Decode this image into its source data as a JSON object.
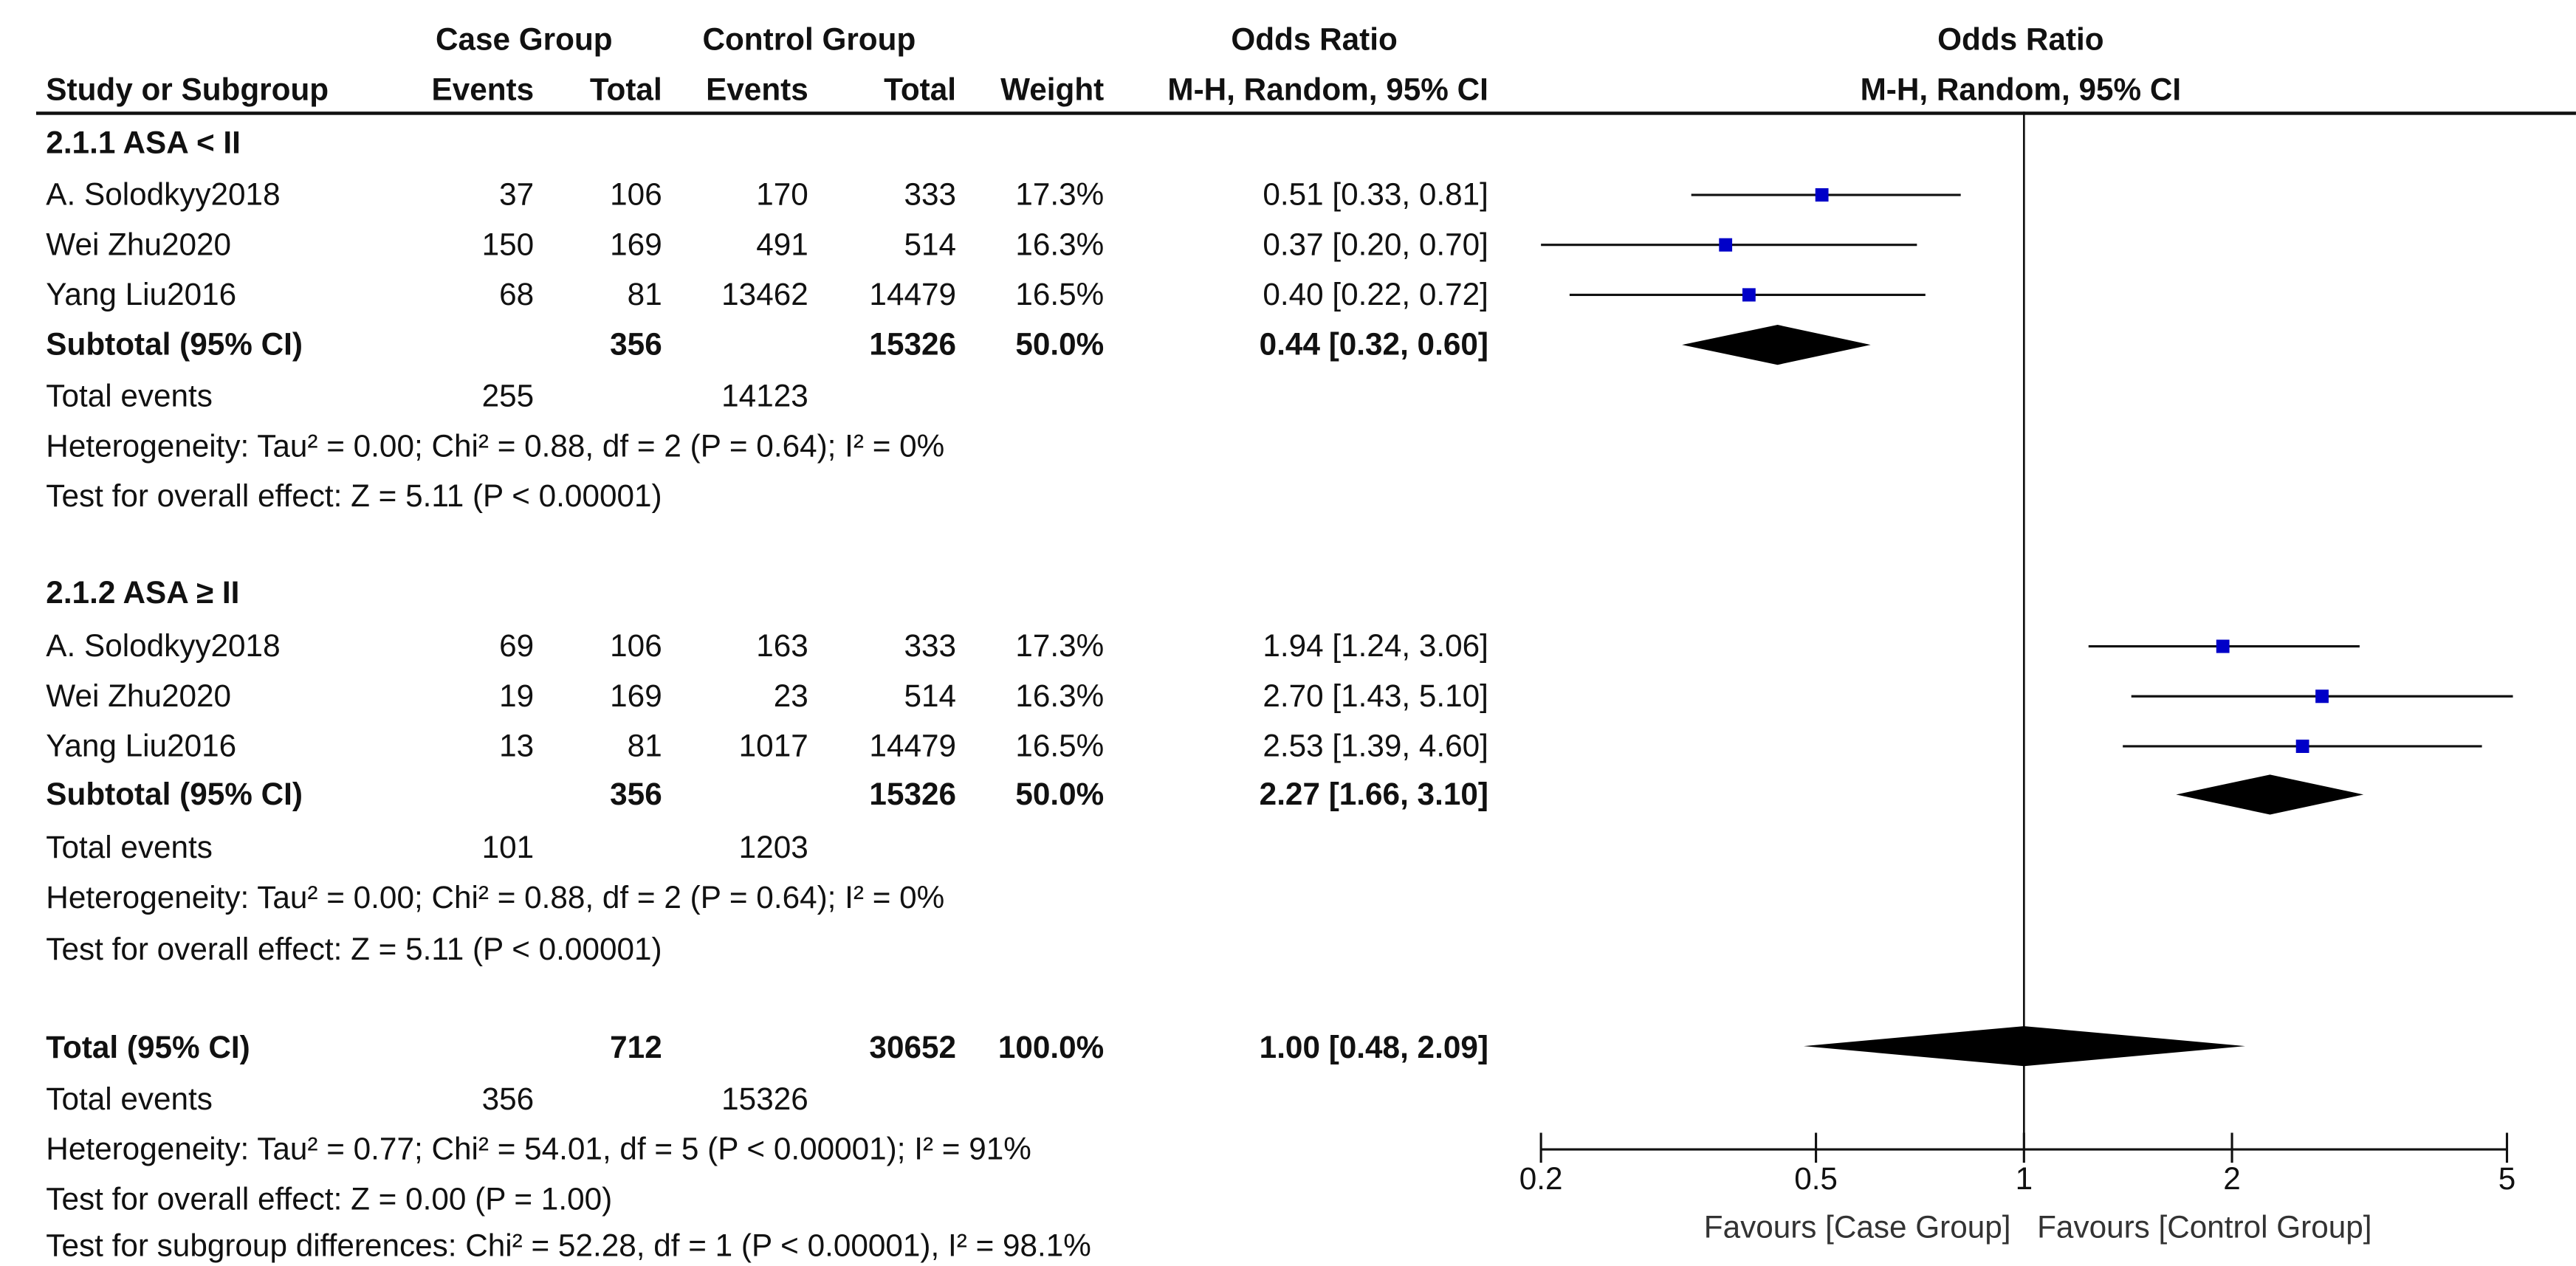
{
  "header": {
    "case_group": "Case Group",
    "control_group": "Control Group",
    "odds_ratio_left": "Odds Ratio",
    "study_or_subgroup": "Study or Subgroup",
    "events_case": "Events",
    "total_case": "Total",
    "events_control": "Events",
    "total_control": "Total",
    "weight": "Weight",
    "method_left": "M-H, Random, 95% CI",
    "odds_ratio_right": "Odds Ratio",
    "method_right": "M-H, Random, 95% CI"
  },
  "subgroups": [
    {
      "title": "2.1.1 ASA < II",
      "studies": [
        {
          "name": "A. Solodkyy2018",
          "case_events": "37",
          "case_total": "106",
          "control_events": "170",
          "control_total": "333",
          "weight": "17.3%",
          "ci_text": "0.51 [0.33, 0.81]"
        },
        {
          "name": "Wei Zhu2020",
          "case_events": "150",
          "case_total": "169",
          "control_events": "491",
          "control_total": "514",
          "weight": "16.3%",
          "ci_text": "0.37 [0.20, 0.70]"
        },
        {
          "name": "Yang Liu2016",
          "case_events": "68",
          "case_total": "81",
          "control_events": "13462",
          "control_total": "14479",
          "weight": "16.5%",
          "ci_text": "0.40 [0.22, 0.72]"
        }
      ],
      "subtotal": {
        "label": "Subtotal (95% CI)",
        "case_total": "356",
        "control_total": "15326",
        "weight": "50.0%",
        "ci_text": "0.44 [0.32, 0.60]"
      },
      "total_events": {
        "label": "Total events",
        "case": "255",
        "control": "14123"
      },
      "heterogeneity": "Heterogeneity: Tau² = 0.00; Chi² = 0.88, df = 2 (P = 0.64); I² = 0%",
      "overall_effect": "Test for overall effect: Z = 5.11 (P < 0.00001)"
    },
    {
      "title": "2.1.2 ASA ≥ II",
      "studies": [
        {
          "name": "A. Solodkyy2018",
          "case_events": "69",
          "case_total": "106",
          "control_events": "163",
          "control_total": "333",
          "weight": "17.3%",
          "ci_text": "1.94 [1.24, 3.06]"
        },
        {
          "name": "Wei Zhu2020",
          "case_events": "19",
          "case_total": "169",
          "control_events": "23",
          "control_total": "514",
          "weight": "16.3%",
          "ci_text": "2.70 [1.43, 5.10]"
        },
        {
          "name": "Yang Liu2016",
          "case_events": "13",
          "case_total": "81",
          "control_events": "1017",
          "control_total": "14479",
          "weight": "16.5%",
          "ci_text": "2.53 [1.39, 4.60]"
        }
      ],
      "subtotal": {
        "label": "Subtotal (95% CI)",
        "case_total": "356",
        "control_total": "15326",
        "weight": "50.0%",
        "ci_text": "2.27 [1.66, 3.10]"
      },
      "total_events": {
        "label": "Total events",
        "case": "101",
        "control": "1203"
      },
      "heterogeneity": "Heterogeneity: Tau² = 0.00; Chi² = 0.88, df = 2 (P = 0.64); I² = 0%",
      "overall_effect": "Test for overall effect: Z = 5.11 (P < 0.00001)"
    }
  ],
  "overall": {
    "label": "Total (95% CI)",
    "case_total": "712",
    "control_total": "30652",
    "weight": "100.0%",
    "ci_text": "1.00 [0.48, 2.09]",
    "total_events": {
      "label": "Total events",
      "case": "356",
      "control": "15326"
    },
    "heterogeneity": "Heterogeneity: Tau² = 0.77; Chi² = 54.01, df = 5 (P < 0.00001); I² = 91%",
    "overall_effect": "Test for overall effect: Z = 0.00 (P = 1.00)",
    "subgroup_differences": "Test for subgroup differences: Chi² = 52.28, df = 1 (P < 0.00001), I² = 98.1%"
  },
  "axis": {
    "favours_left": "Favours [Case Group]",
    "favours_right": "Favours [Control Group]"
  },
  "colors": {
    "study_marker": "#0000c8",
    "diamond": "#000000",
    "line": "#111111"
  },
  "chart_data": {
    "type": "forest",
    "scale": "log",
    "xlim": [
      0.2,
      5
    ],
    "ticks": [
      0.2,
      0.5,
      1,
      2,
      5
    ],
    "tick_labels": [
      "0.2",
      "0.5",
      "1",
      "2",
      "5"
    ],
    "null_line": 1,
    "xlabel_left": "Favours [Case Group]",
    "xlabel_right": "Favours [Control Group]",
    "studies": [
      {
        "subgroup": "2.1.1 ASA < II",
        "name": "A. Solodkyy2018",
        "or": 0.51,
        "lo": 0.33,
        "hi": 0.81,
        "weight": 17.3
      },
      {
        "subgroup": "2.1.1 ASA < II",
        "name": "Wei Zhu2020",
        "or": 0.37,
        "lo": 0.2,
        "hi": 0.7,
        "weight": 16.3
      },
      {
        "subgroup": "2.1.1 ASA < II",
        "name": "Yang Liu2016",
        "or": 0.4,
        "lo": 0.22,
        "hi": 0.72,
        "weight": 16.5
      },
      {
        "subgroup": "2.1.2 ASA ≥ II",
        "name": "A. Solodkyy2018",
        "or": 1.94,
        "lo": 1.24,
        "hi": 3.06,
        "weight": 17.3
      },
      {
        "subgroup": "2.1.2 ASA ≥ II",
        "name": "Wei Zhu2020",
        "or": 2.7,
        "lo": 1.43,
        "hi": 5.1,
        "weight": 16.3
      },
      {
        "subgroup": "2.1.2 ASA ≥ II",
        "name": "Yang Liu2016",
        "or": 2.53,
        "lo": 1.39,
        "hi": 4.6,
        "weight": 16.5
      }
    ],
    "pooled": [
      {
        "name": "Subtotal 2.1.1",
        "or": 0.44,
        "lo": 0.32,
        "hi": 0.6
      },
      {
        "name": "Subtotal 2.1.2",
        "or": 2.27,
        "lo": 1.66,
        "hi": 3.1
      },
      {
        "name": "Total",
        "or": 1.0,
        "lo": 0.48,
        "hi": 2.09
      }
    ]
  }
}
